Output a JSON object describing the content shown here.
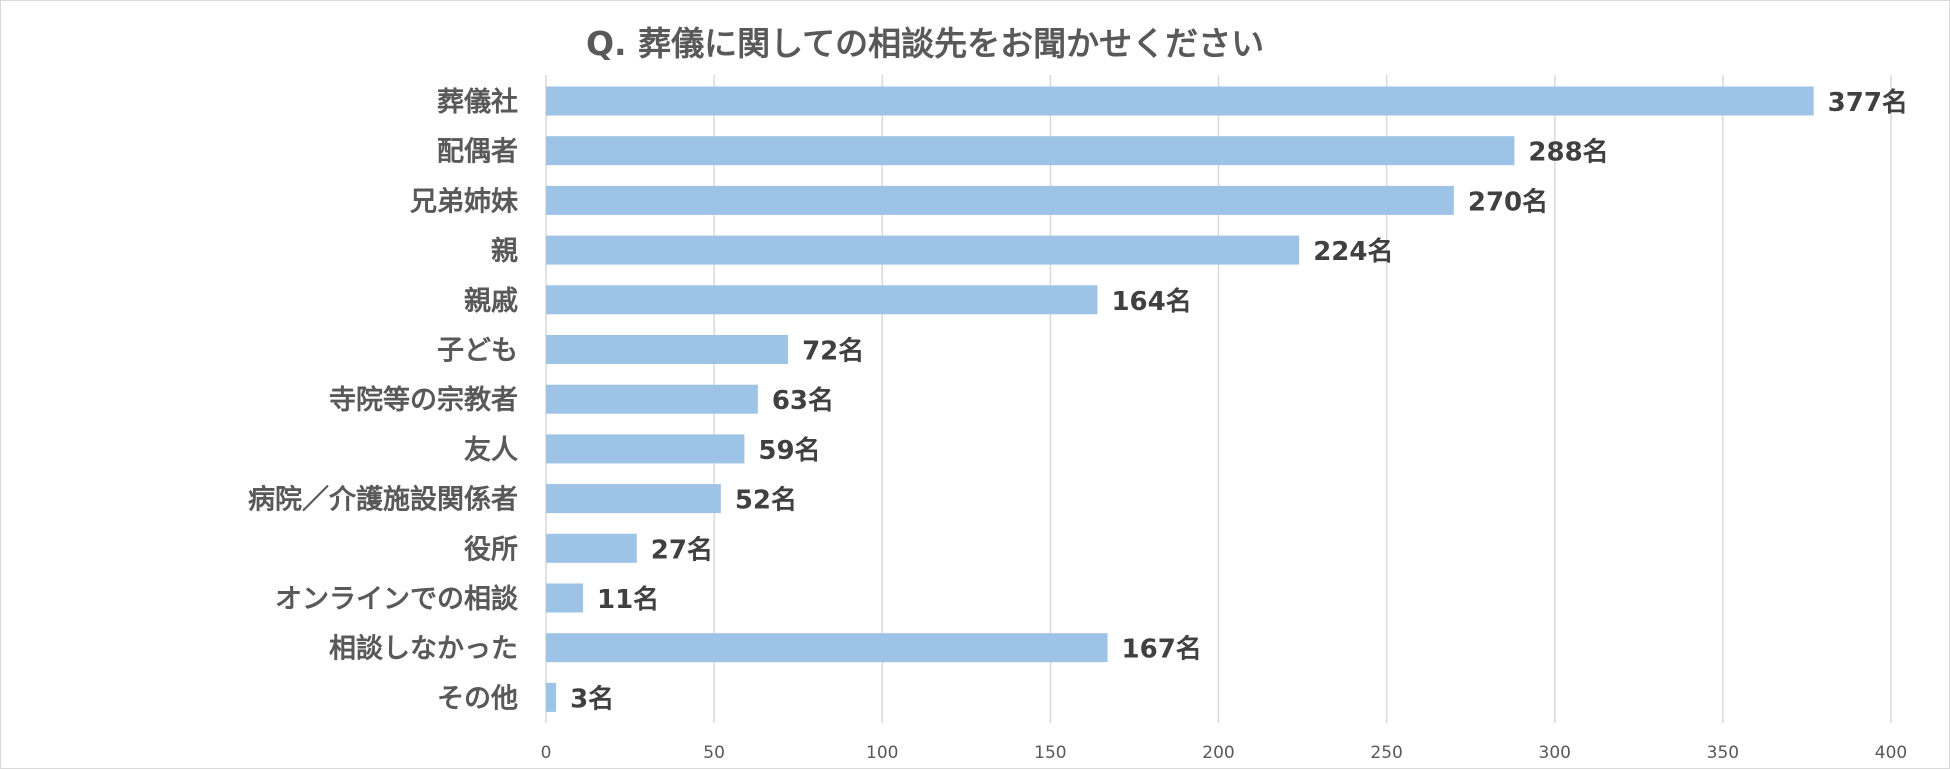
{
  "chart_data": {
    "type": "bar",
    "orientation": "horizontal",
    "title": "Q. 葬儀に関しての相談先をお聞かせください",
    "categories": [
      "葬儀社",
      "配偶者",
      "兄弟姉妹",
      "親",
      "親戚",
      "子ども",
      "寺院等の宗教者",
      "友人",
      "病院／介護施設関係者",
      "役所",
      "オンラインでの相談",
      "相談しなかった",
      "その他"
    ],
    "values": [
      377,
      288,
      270,
      224,
      164,
      72,
      63,
      59,
      52,
      27,
      11,
      167,
      3
    ],
    "data_labels": [
      "377名",
      "288名",
      "270名",
      "224名",
      "164名",
      "72名",
      "63名",
      "59名",
      "52名",
      "27名",
      "11名",
      "167名",
      "3名"
    ],
    "xlim": [
      0,
      400
    ],
    "x_ticks": [
      "0",
      "50",
      "100",
      "150",
      "200",
      "250",
      "300",
      "350",
      "400"
    ],
    "xlabel": "",
    "ylabel": "",
    "grid": "vertical",
    "legend": "none",
    "bar_color": "#9dc3e6"
  }
}
